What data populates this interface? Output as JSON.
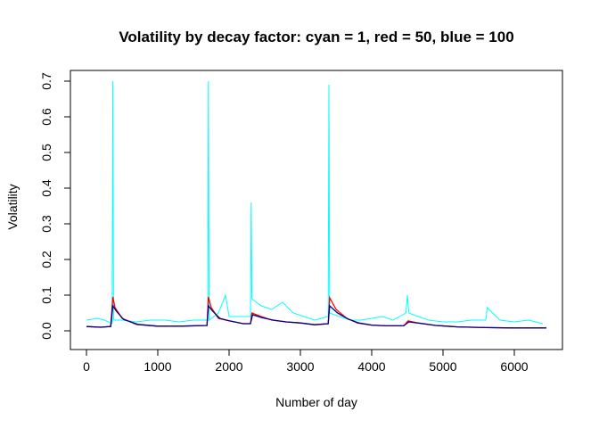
{
  "chart_data": {
    "type": "line",
    "title": "Volatility by decay factor: cyan = 1, red = 50, blue = 100",
    "xlabel": "Number of day",
    "ylabel": "Volatility",
    "xlim": [
      0,
      6450
    ],
    "ylim": [
      0,
      0.7
    ],
    "xticks": [
      "0",
      "1000",
      "2000",
      "3000",
      "4000",
      "5000",
      "6000"
    ],
    "yticks": [
      "0.0",
      "0.1",
      "0.2",
      "0.3",
      "0.4",
      "0.5",
      "0.6",
      "0.7"
    ],
    "grid": false,
    "legend": "none",
    "series": [
      {
        "color": "#00ffff",
        "x": [
          0,
          150,
          250,
          360,
          370,
          380,
          500,
          700,
          900,
          1100,
          1300,
          1500,
          1700,
          1710,
          1720,
          1850,
          1950,
          2000,
          2150,
          2300,
          2310,
          2320,
          2450,
          2600,
          2750,
          2900,
          3050,
          3200,
          3390,
          3400,
          3410,
          3550,
          3700,
          3850,
          4000,
          4150,
          4300,
          4480,
          4500,
          4520,
          4650,
          4800,
          5000,
          5200,
          5400,
          5600,
          5620,
          5800,
          6000,
          6200,
          6400
        ],
        "values": [
          0.03,
          0.035,
          0.03,
          0.02,
          0.7,
          0.03,
          0.03,
          0.025,
          0.03,
          0.03,
          0.025,
          0.03,
          0.03,
          0.7,
          0.03,
          0.05,
          0.1,
          0.04,
          0.04,
          0.04,
          0.36,
          0.09,
          0.07,
          0.06,
          0.08,
          0.05,
          0.04,
          0.03,
          0.04,
          0.69,
          0.05,
          0.04,
          0.03,
          0.03,
          0.035,
          0.04,
          0.03,
          0.05,
          0.1,
          0.05,
          0.04,
          0.03,
          0.025,
          0.025,
          0.03,
          0.03,
          0.065,
          0.03,
          0.025,
          0.03,
          0.02
        ]
      },
      {
        "color": "#ff0000",
        "x": [
          0,
          200,
          340,
          370,
          400,
          500,
          700,
          1000,
          1300,
          1690,
          1710,
          1750,
          1850,
          2000,
          2200,
          2300,
          2320,
          2450,
          2600,
          2800,
          3000,
          3200,
          3390,
          3410,
          3500,
          3650,
          3800,
          4000,
          4200,
          4450,
          4510,
          4650,
          4900,
          5200,
          5600,
          6000,
          6450
        ],
        "values": [
          0.012,
          0.01,
          0.012,
          0.095,
          0.065,
          0.035,
          0.018,
          0.013,
          0.013,
          0.015,
          0.095,
          0.065,
          0.035,
          0.028,
          0.02,
          0.02,
          0.05,
          0.04,
          0.03,
          0.025,
          0.022,
          0.017,
          0.02,
          0.093,
          0.06,
          0.035,
          0.022,
          0.016,
          0.014,
          0.014,
          0.028,
          0.022,
          0.015,
          0.011,
          0.009,
          0.008,
          0.008
        ]
      },
      {
        "color": "#00008b",
        "x": [
          0,
          200,
          340,
          370,
          420,
          520,
          720,
          1000,
          1300,
          1690,
          1710,
          1770,
          1870,
          2000,
          2200,
          2300,
          2330,
          2460,
          2620,
          2800,
          3000,
          3200,
          3390,
          3410,
          3520,
          3670,
          3820,
          4000,
          4200,
          4450,
          4520,
          4680,
          4900,
          5200,
          5600,
          6000,
          6450
        ],
        "values": [
          0.012,
          0.01,
          0.012,
          0.07,
          0.055,
          0.032,
          0.018,
          0.013,
          0.013,
          0.015,
          0.07,
          0.055,
          0.035,
          0.028,
          0.02,
          0.02,
          0.045,
          0.037,
          0.03,
          0.025,
          0.022,
          0.017,
          0.02,
          0.07,
          0.05,
          0.033,
          0.022,
          0.016,
          0.014,
          0.014,
          0.025,
          0.021,
          0.015,
          0.011,
          0.009,
          0.008,
          0.008
        ]
      }
    ]
  }
}
